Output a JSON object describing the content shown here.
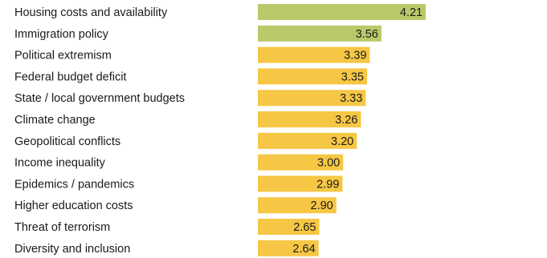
{
  "chart_data": {
    "type": "bar",
    "orientation": "horizontal",
    "categories": [
      "Housing costs and availability",
      "Immigration policy",
      "Political extremism",
      "Federal budget deficit",
      "State / local government budgets",
      "Climate change",
      "Geopolitical conflicts",
      "Income inequality",
      "Epidemics / pandemics",
      "Higher education costs",
      "Threat of terrorism",
      "Diversity and inclusion"
    ],
    "values": [
      4.21,
      3.56,
      3.39,
      3.35,
      3.33,
      3.26,
      3.2,
      3.0,
      2.99,
      2.9,
      2.65,
      2.64
    ],
    "value_labels": [
      "4.21",
      "3.56",
      "3.39",
      "3.35",
      "3.33",
      "3.26",
      "3.20",
      "3.00",
      "2.99",
      "2.90",
      "2.65",
      "2.64"
    ],
    "colors": [
      "#bbc86a",
      "#bbc86a",
      "#f6c744",
      "#f6c744",
      "#f6c744",
      "#f6c744",
      "#f6c744",
      "#f6c744",
      "#f6c744",
      "#f6c744",
      "#f6c744",
      "#f6c744"
    ],
    "title": "",
    "xlabel": "",
    "ylabel": "",
    "grid": false,
    "legend": "none"
  }
}
